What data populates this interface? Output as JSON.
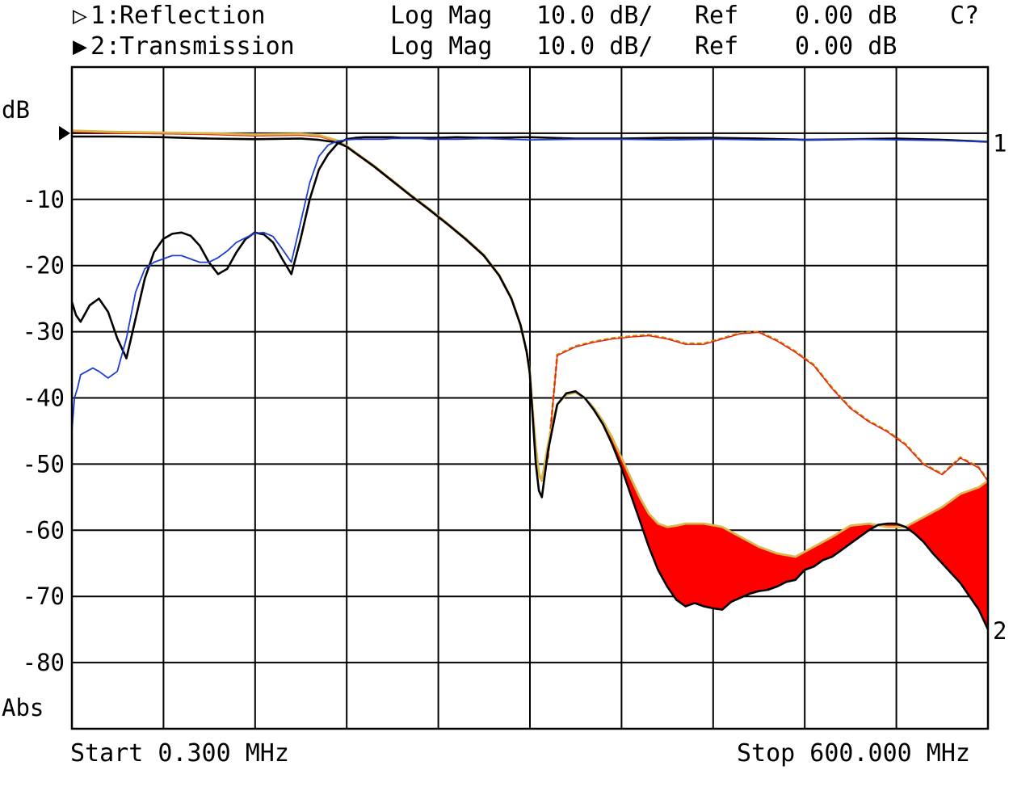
{
  "header": {
    "channels": [
      {
        "marker": "▷",
        "id": "1",
        "name": "Reflection",
        "format": "Log Mag",
        "scale": "10.0 dB/",
        "ref_label": "Ref",
        "ref_value": "0.00 dB",
        "flag": "C?"
      },
      {
        "marker": "▶",
        "id": "2",
        "name": "Transmission",
        "format": "Log Mag",
        "scale": "10.0 dB/",
        "ref_label": "Ref",
        "ref_value": "0.00 dB",
        "flag": ""
      }
    ]
  },
  "footer": {
    "start": "Start 0.300 MHz",
    "stop": "Stop 600.000 MHz"
  },
  "chart_data": {
    "type": "line",
    "title": "",
    "xlabel": "",
    "ylabel": "dB",
    "y_unit_label": "Abs",
    "xlim": [
      0.3,
      600.0
    ],
    "ylim": [
      -90,
      10
    ],
    "yticks": [
      {
        "value": -10,
        "label": "-10"
      },
      {
        "value": -20,
        "label": "-20"
      },
      {
        "value": -30,
        "label": "-30"
      },
      {
        "value": -40,
        "label": "-40"
      },
      {
        "value": -50,
        "label": "-50"
      },
      {
        "value": -60,
        "label": "-60"
      },
      {
        "value": -70,
        "label": "-70"
      },
      {
        "value": -80,
        "label": "-80"
      }
    ],
    "x_divisions": 10,
    "grid": true,
    "trace_end_labels": [
      "1",
      "2"
    ],
    "reference_marker_db": 0,
    "fill_between": {
      "upper": "t2_gold",
      "lower": "t2_black",
      "color": "#ff0000",
      "x_from": 342
    },
    "series": [
      {
        "id": "r_black",
        "color": "#000000",
        "width": 2.6,
        "x": [
          0.3,
          3,
          6,
          12,
          18,
          24,
          30,
          36,
          42,
          48,
          54,
          60,
          66,
          72,
          78,
          84,
          90,
          96,
          102,
          108,
          114,
          120,
          126,
          132,
          138,
          144,
          150,
          156,
          162,
          168,
          174,
          180,
          186,
          192,
          198,
          204,
          210,
          216,
          222,
          228,
          234,
          240,
          252,
          270,
          300,
          330,
          360,
          390,
          420,
          450,
          480,
          510,
          540,
          570,
          600
        ],
        "y": [
          -25.5,
          -27.5,
          -28.5,
          -26,
          -25,
          -27,
          -31,
          -34,
          -28,
          -22,
          -18,
          -16,
          -15.2,
          -15,
          -15.5,
          -17,
          -19.5,
          -21.3,
          -20.5,
          -18,
          -16,
          -15,
          -15.3,
          -16.5,
          -19,
          -21.3,
          -16,
          -10,
          -5.5,
          -3.2,
          -1.6,
          -0.9,
          -0.7,
          -0.6,
          -0.6,
          -0.6,
          -0.6,
          -0.7,
          -0.7,
          -0.7,
          -0.7,
          -0.7,
          -0.6,
          -0.7,
          -0.6,
          -0.8,
          -0.8,
          -0.7,
          -0.7,
          -0.8,
          -1.0,
          -0.9,
          -0.8,
          -1.0,
          -1.3
        ]
      },
      {
        "id": "r_blue",
        "color": "#1f3fd1",
        "width": 1.8,
        "x": [
          0.3,
          2,
          4,
          6,
          10,
          14,
          18,
          24,
          30,
          36,
          42,
          48,
          54,
          60,
          66,
          72,
          78,
          84,
          90,
          96,
          102,
          108,
          114,
          120,
          126,
          132,
          138,
          144,
          150,
          156,
          162,
          168,
          174,
          180,
          186,
          192,
          198,
          204,
          210,
          216,
          222,
          228,
          234,
          240,
          252,
          270,
          300,
          330,
          360,
          390,
          420,
          450,
          480,
          510,
          540,
          570,
          600
        ],
        "y": [
          -45,
          -40,
          -38.5,
          -36.5,
          -36,
          -35.5,
          -36,
          -37,
          -36,
          -31,
          -24,
          -20.5,
          -19.5,
          -19,
          -18.5,
          -18.5,
          -19,
          -19.5,
          -19.5,
          -18.8,
          -17.8,
          -16.5,
          -15.8,
          -15.1,
          -15,
          -15.6,
          -17.5,
          -19.5,
          -13.5,
          -7.5,
          -3.5,
          -1.8,
          -1.2,
          -1.0,
          -0.9,
          -0.9,
          -0.9,
          -0.9,
          -0.8,
          -0.8,
          -0.8,
          -0.8,
          -0.9,
          -0.9,
          -0.9,
          -0.8,
          -1.0,
          -0.9,
          -0.9,
          -1.0,
          -0.9,
          -1.0,
          -1.0,
          -0.9,
          -1.0,
          -1.1,
          -1.3
        ]
      },
      {
        "id": "t1_orange",
        "color": "#c98a00",
        "width": 2.8,
        "dashed": true,
        "x": [
          0.3,
          30,
          60,
          90,
          120,
          150,
          162,
          174,
          180,
          186,
          198,
          210,
          222,
          234,
          246,
          258,
          270,
          280,
          288,
          294,
          298,
          300,
          302,
          304,
          306,
          308,
          312,
          318,
          330,
          342,
          354,
          366,
          378,
          390,
          402,
          414,
          426,
          438,
          450,
          462,
          474,
          486,
          498,
          510,
          522,
          534,
          546,
          558,
          570,
          582,
          594,
          600
        ],
        "y": [
          0.3,
          0.1,
          0,
          -0.1,
          -0.3,
          -0.2,
          -0.4,
          -1.2,
          -2.0,
          -3.0,
          -5.0,
          -7.2,
          -9.4,
          -11.5,
          -13.7,
          -16.0,
          -18.5,
          -21.5,
          -25.0,
          -29.0,
          -33.0,
          -36.0,
          -42.0,
          -47.5,
          -51.5,
          -52.5,
          -49.0,
          -33.5,
          -32.2,
          -31.5,
          -31.0,
          -30.7,
          -30.5,
          -31.0,
          -31.8,
          -31.8,
          -31.0,
          -30.2,
          -30.0,
          -31.3,
          -33.0,
          -35.0,
          -38.5,
          -41.5,
          -43.5,
          -45.0,
          -47.0,
          -50.0,
          -51.5,
          -49.0,
          -50.5,
          -52.5
        ]
      },
      {
        "id": "t1_red",
        "color": "#e81e10",
        "width": 1.4,
        "x": [
          0.3,
          30,
          60,
          90,
          120,
          150,
          162,
          174,
          180,
          186,
          198,
          210,
          222,
          234,
          246,
          258,
          270,
          280,
          288,
          294,
          298,
          300,
          302,
          304,
          306,
          308,
          312,
          318,
          330,
          342,
          354,
          366,
          378,
          390,
          402,
          414,
          426,
          438,
          450,
          462,
          474,
          486,
          498,
          510,
          522,
          534,
          546,
          558,
          570,
          582,
          594,
          600
        ],
        "y": [
          0.2,
          0,
          -0.1,
          -0.2,
          -0.4,
          -0.3,
          -0.5,
          -1.3,
          -2.1,
          -3.1,
          -5.1,
          -7.3,
          -9.5,
          -11.6,
          -13.8,
          -16.1,
          -18.6,
          -21.6,
          -25.1,
          -29.1,
          -33.1,
          -36.1,
          -42.1,
          -47.6,
          -51.6,
          -52.6,
          -49.1,
          -33.6,
          -32.3,
          -31.6,
          -31.1,
          -30.8,
          -30.6,
          -31.1,
          -31.9,
          -31.9,
          -31.1,
          -30.3,
          -30.1,
          -31.4,
          -33.1,
          -35.1,
          -38.6,
          -41.6,
          -43.6,
          -45.1,
          -47.1,
          -50.1,
          -51.6,
          -49.1,
          -50.6,
          -52.6
        ]
      },
      {
        "id": "t2_gold",
        "color": "#d8b84a",
        "width": 2.8,
        "x": [
          0.3,
          30,
          60,
          90,
          120,
          150,
          162,
          174,
          180,
          186,
          198,
          210,
          222,
          234,
          246,
          258,
          270,
          280,
          288,
          294,
          298,
          300,
          302,
          304,
          306,
          308,
          312,
          318,
          324,
          330,
          336,
          342,
          348,
          354,
          360,
          366,
          372,
          378,
          384,
          390,
          396,
          402,
          408,
          414,
          426,
          438,
          450,
          462,
          474,
          486,
          498,
          510,
          522,
          534,
          546,
          558,
          570,
          582,
          594,
          600
        ],
        "y": [
          0.4,
          0.2,
          0.1,
          0,
          -0.2,
          -0.1,
          -0.3,
          -1.1,
          -1.9,
          -2.9,
          -4.9,
          -7.1,
          -9.3,
          -11.4,
          -13.6,
          -15.9,
          -18.4,
          -21.4,
          -24.9,
          -28.9,
          -32.9,
          -36.0,
          -42.0,
          -47.4,
          -51.4,
          -52.4,
          -47.0,
          -41.0,
          -39.5,
          -39.2,
          -40.0,
          -41.5,
          -43.5,
          -46.0,
          -49.0,
          -52.0,
          -55.0,
          -57.5,
          -59.0,
          -59.5,
          -59.3,
          -59.0,
          -59.0,
          -59.0,
          -59.5,
          -61.0,
          -62.5,
          -63.5,
          -64.0,
          -62.5,
          -61.0,
          -59.3,
          -59.0,
          -59.5,
          -59.5,
          -58.0,
          -56.5,
          -54.5,
          -53.5,
          -52.5
        ]
      },
      {
        "id": "t2_black",
        "color": "#000000",
        "width": 2.6,
        "x": [
          0.3,
          30,
          60,
          90,
          120,
          150,
          162,
          174,
          180,
          186,
          198,
          210,
          222,
          234,
          246,
          258,
          270,
          280,
          288,
          294,
          298,
          300,
          302,
          304,
          306,
          308,
          312,
          318,
          324,
          330,
          336,
          342,
          348,
          354,
          360,
          366,
          372,
          378,
          384,
          390,
          396,
          402,
          408,
          414,
          420,
          426,
          432,
          438,
          444,
          450,
          456,
          462,
          468,
          474,
          480,
          486,
          492,
          498,
          504,
          510,
          516,
          522,
          528,
          534,
          540,
          546,
          552,
          558,
          564,
          570,
          576,
          582,
          588,
          594,
          600
        ],
        "y": [
          -0.5,
          -0.5,
          -0.6,
          -0.8,
          -0.9,
          -0.8,
          -1.0,
          -1.4,
          -2.0,
          -3.0,
          -5.0,
          -7.2,
          -9.4,
          -11.5,
          -13.7,
          -16.0,
          -18.5,
          -21.5,
          -25.0,
          -29.0,
          -33.0,
          -36.1,
          -43.0,
          -50.0,
          -54.0,
          -55.0,
          -48.0,
          -41.0,
          -39.3,
          -39.0,
          -40.0,
          -41.8,
          -44.0,
          -47.0,
          -50.5,
          -54.5,
          -58.5,
          -62.5,
          -66.0,
          -68.5,
          -70.5,
          -71.5,
          -71.0,
          -71.5,
          -71.8,
          -72.0,
          -70.8,
          -70.2,
          -69.6,
          -69.2,
          -69.0,
          -68.5,
          -67.8,
          -67.5,
          -66.0,
          -65.5,
          -64.5,
          -64.0,
          -63.0,
          -62.0,
          -61.0,
          -60.0,
          -59.2,
          -59.0,
          -59.0,
          -59.5,
          -60.5,
          -61.8,
          -63.5,
          -65.0,
          -66.5,
          -68.0,
          -70.0,
          -72.0,
          -75.0
        ]
      }
    ]
  }
}
